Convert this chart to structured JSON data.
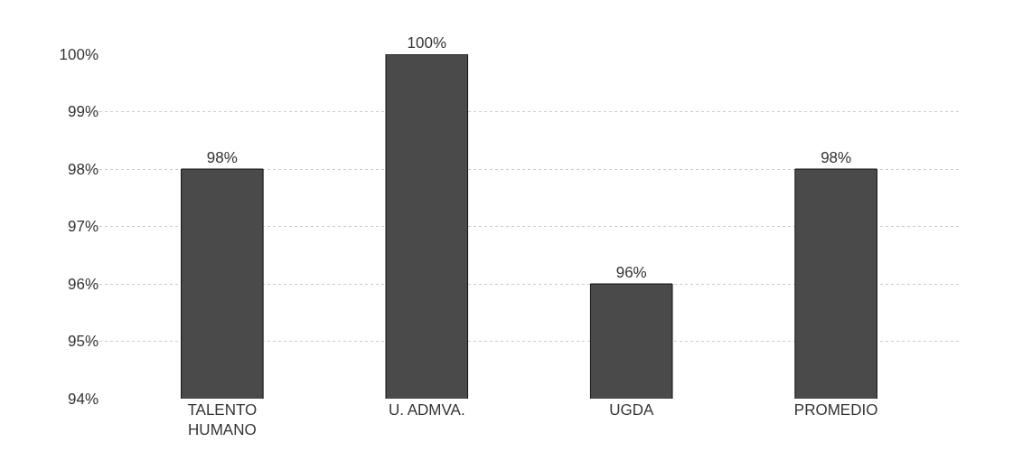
{
  "chart_data": {
    "type": "bar",
    "categories": [
      "TALENTO HUMANO",
      "U. ADMVA.",
      "UGDA",
      "PROMEDIO"
    ],
    "values": [
      98,
      100,
      96,
      98
    ],
    "value_labels": [
      "98%",
      "100%",
      "96%",
      "98%"
    ],
    "color": "#4a4a4a",
    "ylim": [
      94,
      100
    ],
    "yticks": [
      {
        "value": 94,
        "label": "94%"
      },
      {
        "value": 95,
        "label": "95%"
      },
      {
        "value": 96,
        "label": "96%"
      },
      {
        "value": 97,
        "label": "97%"
      },
      {
        "value": 98,
        "label": "98%"
      },
      {
        "value": 99,
        "label": "99%"
      },
      {
        "value": 100,
        "label": "100%"
      }
    ],
    "grid": "y"
  }
}
